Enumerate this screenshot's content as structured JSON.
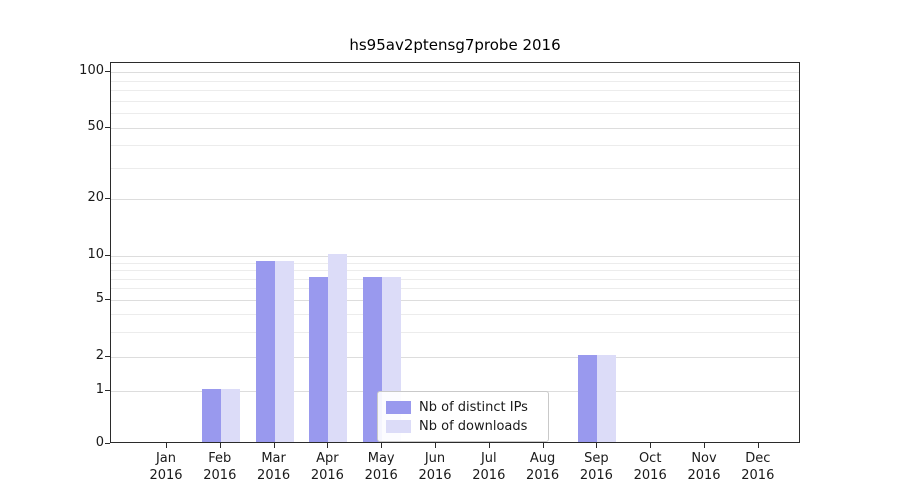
{
  "title": "hs95av2ptensg7probe 2016",
  "chart_data": {
    "type": "bar",
    "title": "hs95av2ptensg7probe 2016",
    "categories": [
      "Jan 2016",
      "Feb 2016",
      "Mar 2016",
      "Apr 2016",
      "May 2016",
      "Jun 2016",
      "Jul 2016",
      "Aug 2016",
      "Sep 2016",
      "Oct 2016",
      "Nov 2016",
      "Dec 2016"
    ],
    "series": [
      {
        "name": "Nb of distinct IPs",
        "color": "#9999ee",
        "values": [
          0,
          1,
          9,
          7,
          7,
          0,
          0,
          0,
          2,
          0,
          0,
          0
        ]
      },
      {
        "name": "Nb of downloads",
        "color": "#dcdcf8",
        "values": [
          0,
          1,
          9,
          10,
          7,
          0,
          0,
          0,
          2,
          0,
          0,
          0
        ]
      }
    ],
    "yticks": [
      0,
      1,
      2,
      5,
      10,
      20,
      50,
      100
    ],
    "ylim": [
      0,
      100
    ],
    "yscale": "log-like",
    "grid": "horizontal",
    "legend_position": "lower center"
  },
  "legend": {
    "items": [
      {
        "label": "Nb of distinct IPs",
        "color": "#9999ee"
      },
      {
        "label": "Nb of downloads",
        "color": "#dcdcf8"
      }
    ]
  }
}
